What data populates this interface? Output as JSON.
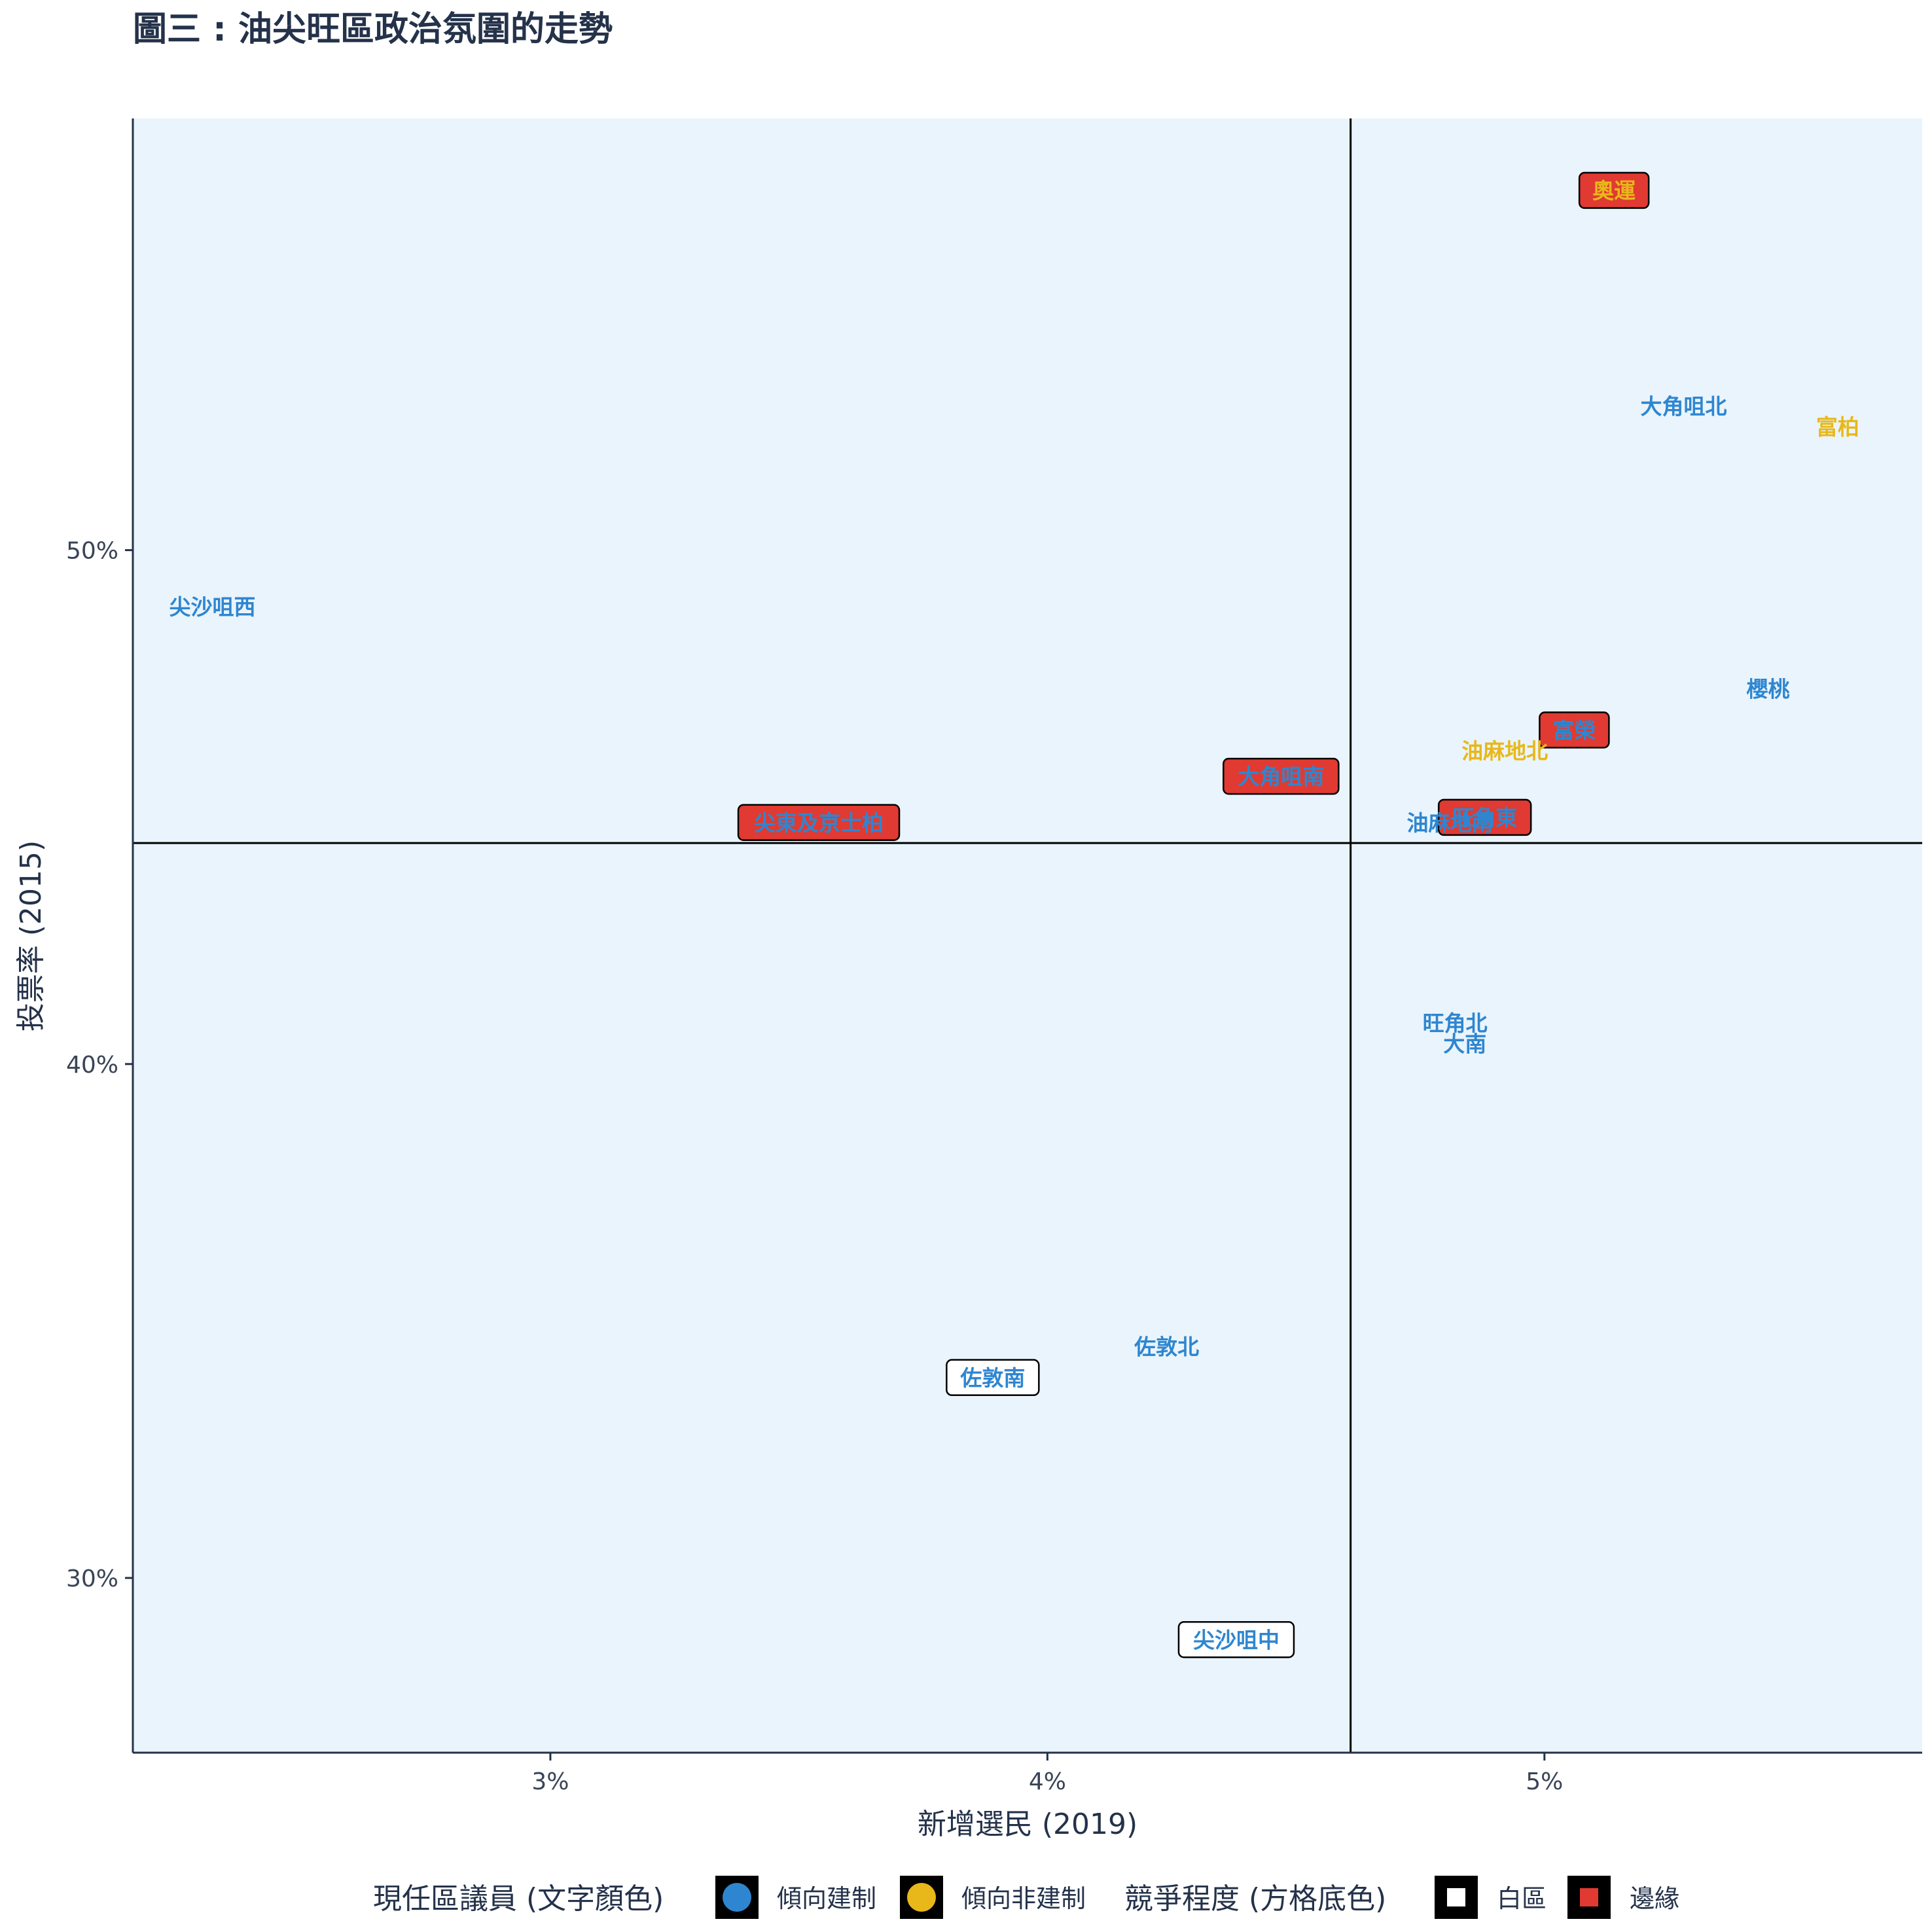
{
  "chart_data": {
    "type": "scatter",
    "title": "圖三 : 油尖旺區政治氛圍的走勢",
    "xlabel": "新增選民 (2019)",
    "ylabel": "投票率 (2015)",
    "xlim": [
      2.16,
      5.76
    ],
    "ylim": [
      26.6,
      58.4
    ],
    "x_ticks": [
      {
        "value": 3,
        "label": "3%"
      },
      {
        "value": 4,
        "label": "4%"
      },
      {
        "value": 5,
        "label": "5%"
      }
    ],
    "y_ticks": [
      {
        "value": 30,
        "label": "30%"
      },
      {
        "value": 40,
        "label": "40%"
      },
      {
        "value": 50,
        "label": "50%"
      }
    ],
    "reference_lines": {
      "x": 4.61,
      "y": 44.3
    },
    "grid": false,
    "legend_position": "bottom",
    "colors": {
      "panel": "#eaf4fc",
      "pro_establishment": "#2e86d0",
      "non_establishment": "#e8b81a",
      "white_area_box": "#ffffff",
      "marginal_box": "#e03a32"
    },
    "legend": {
      "text_color_title": "現任區議員 (文字顏色)",
      "text_color_items": [
        {
          "label": "傾向建制",
          "key": "pro_establishment"
        },
        {
          "label": "傾向非建制",
          "key": "non_establishment"
        }
      ],
      "box_title": "競爭程度 (方格底色)",
      "box_items": [
        {
          "label": "白區",
          "key": "white"
        },
        {
          "label": "邊緣",
          "key": "marginal"
        }
      ]
    },
    "points": [
      {
        "label": "奧運",
        "x": 5.14,
        "y": 57.0,
        "text": "non_establishment",
        "box": "marginal"
      },
      {
        "label": "大角咀北",
        "x": 5.28,
        "y": 52.8,
        "text": "pro_establishment",
        "box": "none"
      },
      {
        "label": "富柏",
        "x": 5.59,
        "y": 52.4,
        "text": "non_establishment",
        "box": "none"
      },
      {
        "label": "尖沙咀西",
        "x": 2.32,
        "y": 48.9,
        "text": "pro_establishment",
        "box": "none"
      },
      {
        "label": "櫻桃",
        "x": 5.45,
        "y": 47.3,
        "text": "pro_establishment",
        "box": "none"
      },
      {
        "label": "富榮",
        "x": 5.06,
        "y": 46.5,
        "text": "pro_establishment",
        "box": "marginal"
      },
      {
        "label": "油麻地北",
        "x": 4.92,
        "y": 46.1,
        "text": "non_establishment",
        "box": "none"
      },
      {
        "label": "大角咀南",
        "x": 4.47,
        "y": 45.6,
        "text": "pro_establishment",
        "box": "marginal"
      },
      {
        "label": "尖東及京士柏",
        "x": 3.54,
        "y": 44.7,
        "text": "pro_establishment",
        "box": "marginal"
      },
      {
        "label": "油麻地南",
        "x": 4.81,
        "y": 44.7,
        "text": "pro_establishment",
        "box": "none"
      },
      {
        "label": "旺角東",
        "x": 4.88,
        "y": 44.8,
        "text": "pro_establishment",
        "box": "marginal"
      },
      {
        "label": "旺角北",
        "x": 4.82,
        "y": 40.8,
        "text": "pro_establishment",
        "box": "none"
      },
      {
        "label": "大南",
        "x": 4.84,
        "y": 40.4,
        "text": "pro_establishment",
        "box": "none"
      },
      {
        "label": "佐敦北",
        "x": 4.24,
        "y": 34.5,
        "text": "pro_establishment",
        "box": "none"
      },
      {
        "label": "佐敦南",
        "x": 3.89,
        "y": 33.9,
        "text": "pro_establishment",
        "box": "white"
      },
      {
        "label": "尖沙咀中",
        "x": 4.38,
        "y": 28.8,
        "text": "pro_establishment",
        "box": "white"
      }
    ]
  }
}
